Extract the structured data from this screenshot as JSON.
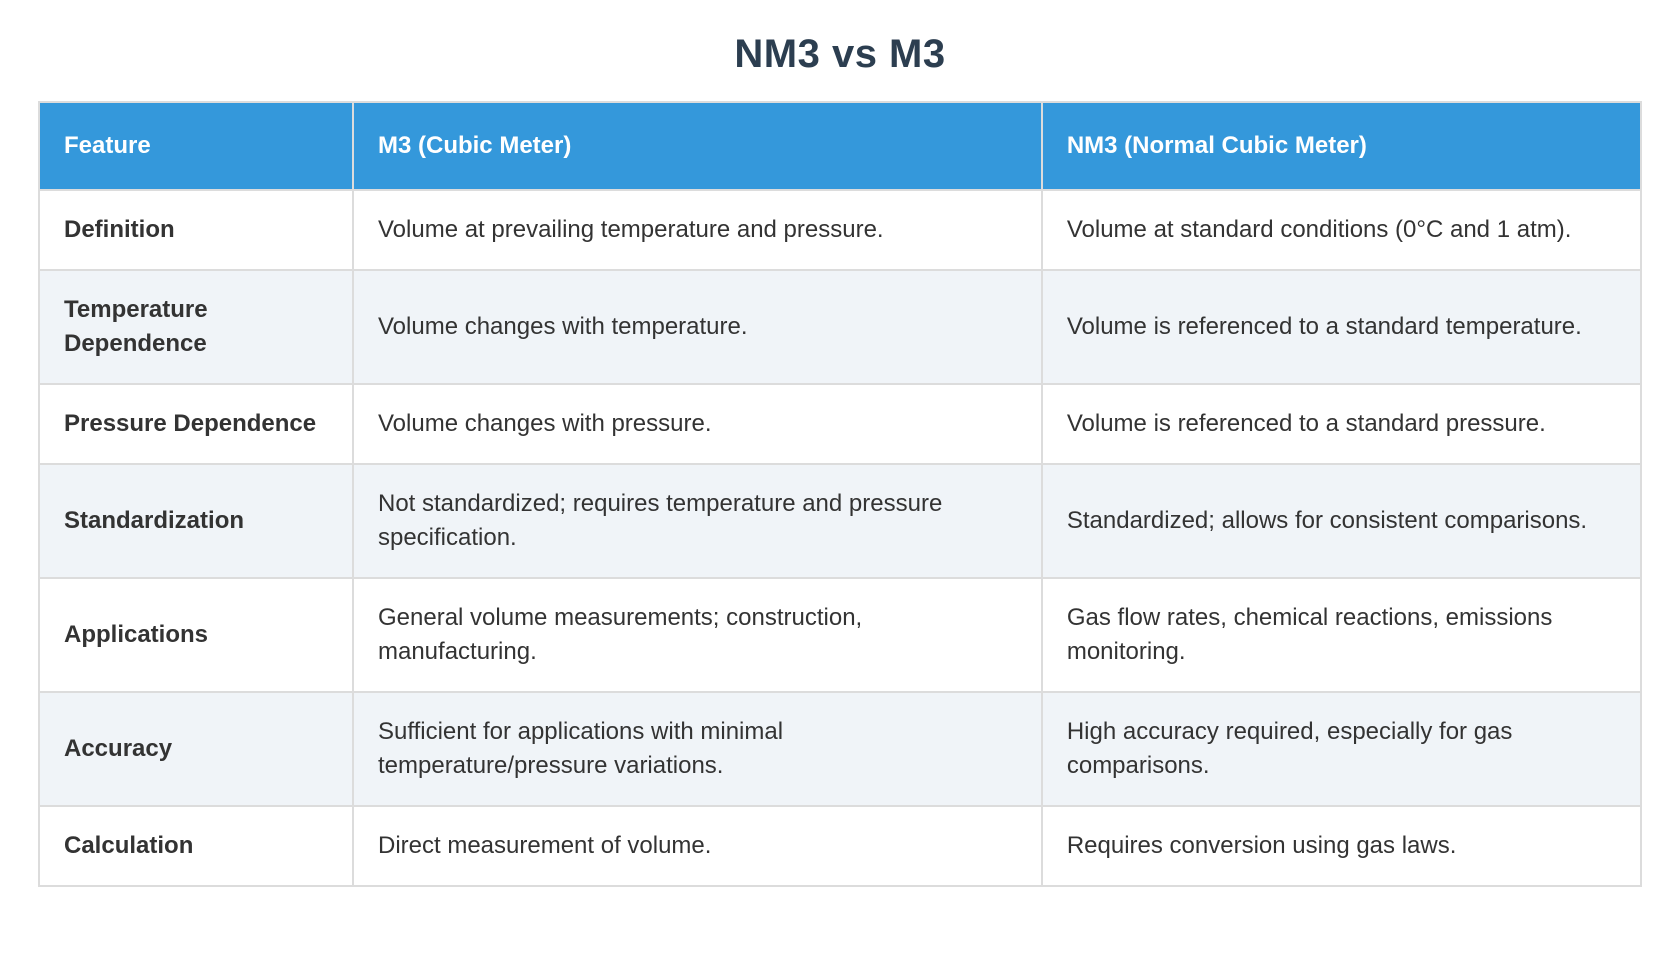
{
  "title": "NM3 vs M3",
  "table": {
    "columns": [
      "Feature",
      "M3 (Cubic Meter)",
      "NM3 (Normal Cubic Meter)"
    ],
    "rows": [
      {
        "feature": "Definition",
        "m3": "Volume at prevailing temperature and pressure.",
        "nm3": "Volume at standard conditions (0°C and 1 atm)."
      },
      {
        "feature": "Temperature Dependence",
        "m3": "Volume changes with temperature.",
        "nm3": "Volume is referenced to a standard temperature."
      },
      {
        "feature": "Pressure Dependence",
        "m3": "Volume changes with pressure.",
        "nm3": "Volume is referenced to a standard pressure."
      },
      {
        "feature": "Standardization",
        "m3": "Not standardized; requires temperature and pressure specification.",
        "nm3": "Standardized; allows for consistent comparisons."
      },
      {
        "feature": "Applications",
        "m3": "General volume measurements; construction, manufacturing.",
        "nm3": "Gas flow rates, chemical reactions, emissions monitoring."
      },
      {
        "feature": "Accuracy",
        "m3": "Sufficient for applications with minimal temperature/pressure variations.",
        "nm3": "High accuracy required, especially for gas comparisons."
      },
      {
        "feature": "Calculation",
        "m3": "Direct measurement of volume.",
        "nm3": "Requires conversion using gas laws."
      }
    ]
  },
  "colors": {
    "header_bg": "#3498db",
    "header_text": "#ffffff",
    "title_text": "#2c3e50",
    "row_bg": "#ffffff",
    "row_alt_bg": "#f0f4f8",
    "border": "#dcdcdc",
    "body_text": "#333333"
  }
}
